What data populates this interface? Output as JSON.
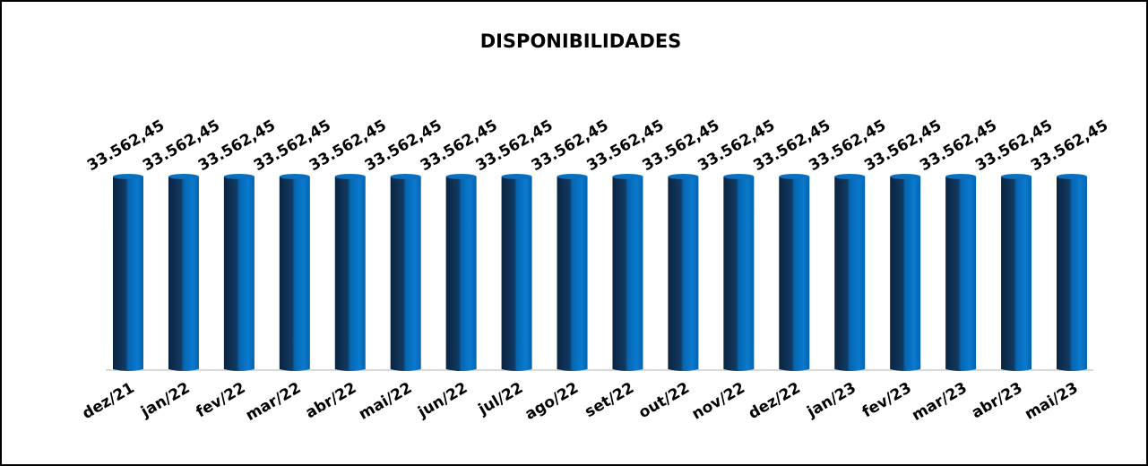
{
  "chart_data": {
    "type": "bar",
    "title": "DISPONIBILIDADES",
    "categories": [
      "dez/21",
      "jan/22",
      "fev/22",
      "mar/22",
      "abr/22",
      "mai/22",
      "jun/22",
      "jul/22",
      "ago/22",
      "set/22",
      "out/22",
      "nov/22",
      "dez/22",
      "jan/23",
      "fev/23",
      "mar/23",
      "abr/23",
      "mai/23"
    ],
    "values": [
      33562.45,
      33562.45,
      33562.45,
      33562.45,
      33562.45,
      33562.45,
      33562.45,
      33562.45,
      33562.45,
      33562.45,
      33562.45,
      33562.45,
      33562.45,
      33562.45,
      33562.45,
      33562.45,
      33562.45,
      33562.45
    ],
    "value_labels": [
      "33.562,45",
      "33.562,45",
      "33.562,45",
      "33.562,45",
      "33.562,45",
      "33.562,45",
      "33.562,45",
      "33.562,45",
      "33.562,45",
      "33.562,45",
      "33.562,45",
      "33.562,45",
      "33.562,45",
      "33.562,45",
      "33.562,45",
      "33.562,45",
      "33.562,45",
      "33.562,45"
    ],
    "color": "#0070c0"
  }
}
